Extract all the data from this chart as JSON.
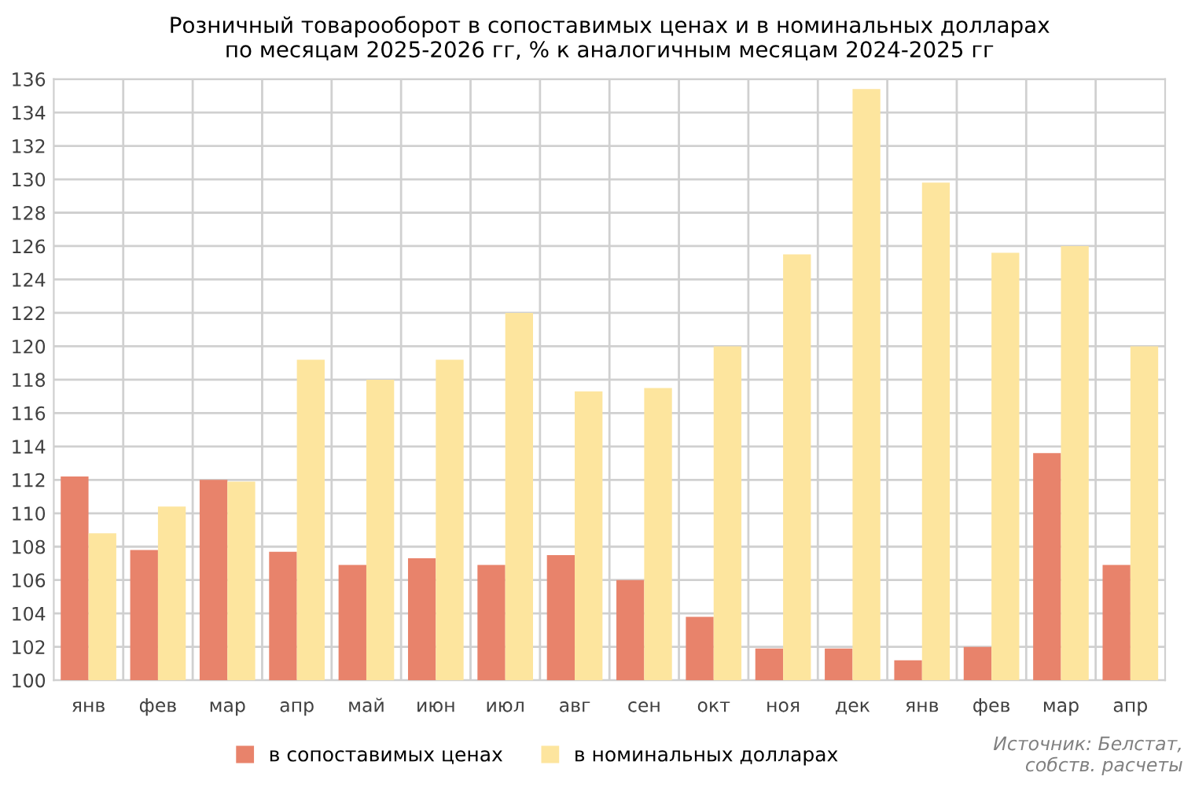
{
  "chart_data": {
    "type": "bar",
    "title": "Розничный товарооборот в сопоставимых ценах и в номинальных долларах\nпо месяцам 2025-2026 гг, % к аналогичным месяцам 2024-2025 гг",
    "categories": [
      "янв",
      "фев",
      "мар",
      "апр",
      "май",
      "июн",
      "июл",
      "авг",
      "сен",
      "окт",
      "ноя",
      "дек",
      "янв",
      "фев",
      "мар",
      "апр"
    ],
    "series": [
      {
        "name": "в сопоставимых ценах",
        "color": "#e8836b",
        "values": [
          112.2,
          107.8,
          112.0,
          107.7,
          106.9,
          107.3,
          106.9,
          107.5,
          106.0,
          103.8,
          101.9,
          101.9,
          101.2,
          102.0,
          113.6,
          106.9
        ]
      },
      {
        "name": "в номинальных долларах",
        "color": "#fde59e",
        "values": [
          108.8,
          110.4,
          111.9,
          119.2,
          118.0,
          119.2,
          122.0,
          117.3,
          117.5,
          120.0,
          125.5,
          135.4,
          129.8,
          125.6,
          126.0,
          120.0
        ]
      }
    ],
    "ylim": [
      100,
      136
    ],
    "yticks": [
      100,
      102,
      104,
      106,
      108,
      110,
      112,
      114,
      116,
      118,
      120,
      122,
      124,
      126,
      128,
      130,
      132,
      134,
      136
    ],
    "grid": true,
    "legend": "bottom",
    "annotations": [
      "Источник: Белстат,\nсобств. расчеты"
    ]
  }
}
